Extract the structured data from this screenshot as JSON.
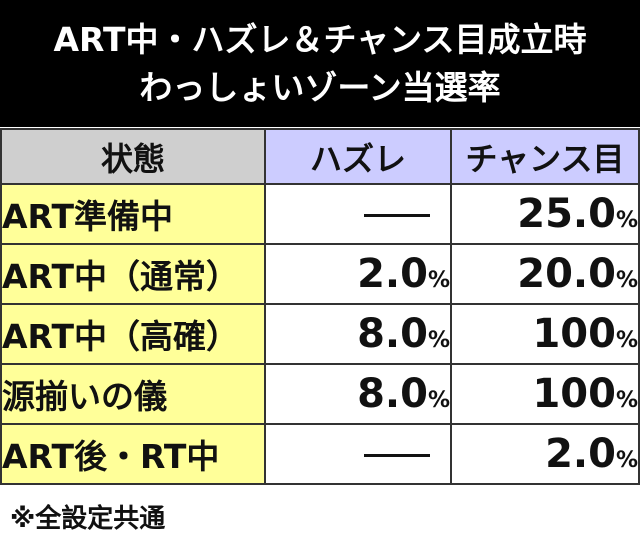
{
  "title": {
    "line1": "ART中・ハズレ＆チャンス目成立時",
    "line2": "わっしょいゾーン当選率"
  },
  "table": {
    "headers": [
      "状態",
      "ハズレ",
      "チャンス目"
    ],
    "rows": [
      {
        "label": "ART準備中",
        "hazure": "—",
        "chance": "25.0%"
      },
      {
        "label": "ART中（通常）",
        "hazure": "2.0%",
        "chance": "20.0%"
      },
      {
        "label": "ART中（高確）",
        "hazure": "8.0%",
        "chance": "100%"
      },
      {
        "label": "源揃いの儀",
        "hazure": "8.0%",
        "chance": "100%"
      },
      {
        "label": "ART後・RT中",
        "hazure": "—",
        "chance": "2.0%"
      }
    ]
  },
  "note": "※全設定共通"
}
